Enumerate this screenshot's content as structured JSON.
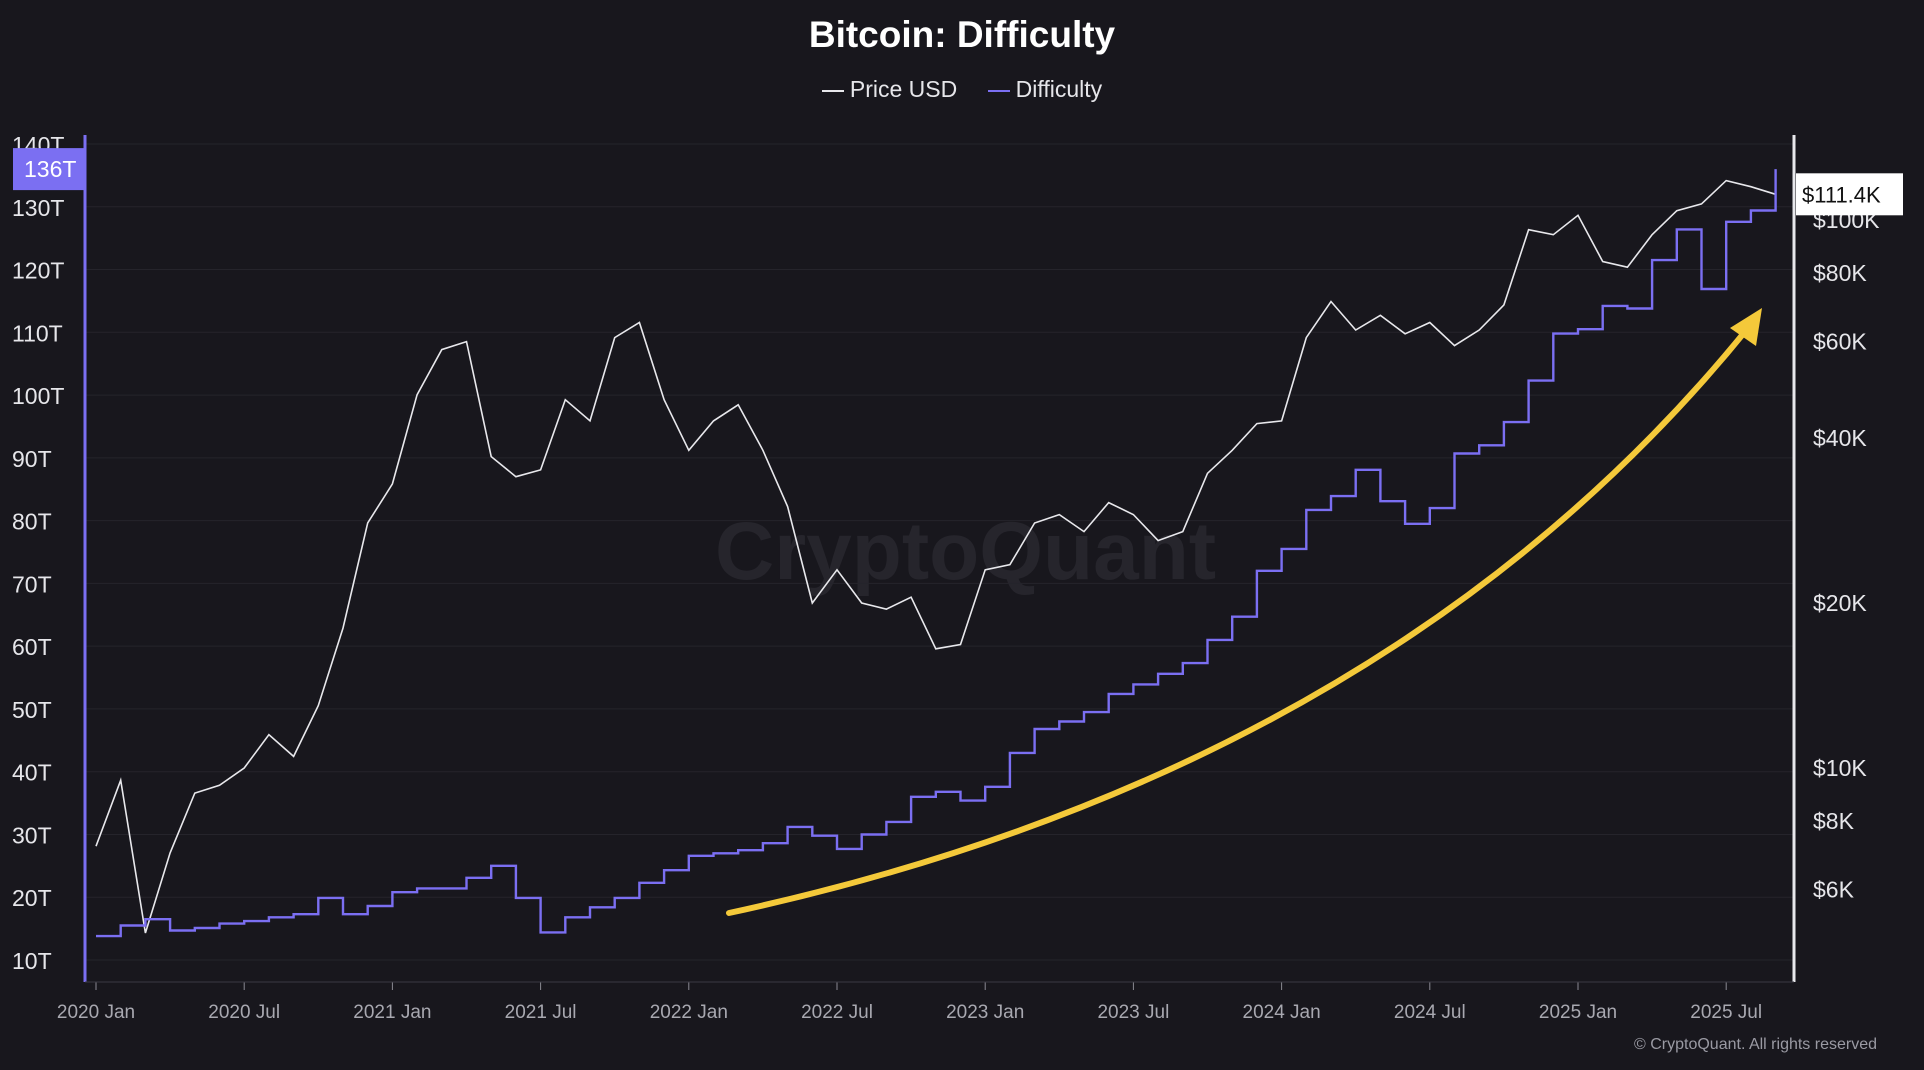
{
  "chart_data": {
    "type": "line",
    "title": "Bitcoin: Difficulty",
    "legend": [
      "Price USD",
      "Difficulty"
    ],
    "legend_placement": "top-center",
    "colors": {
      "price": "#e8e8ec",
      "difficulty": "#7b6ff2",
      "arrow": "#f4c93a",
      "background": "#18171d"
    },
    "x_ticks": [
      "2020 Jan",
      "2020 Jul",
      "2021 Jan",
      "2021 Jul",
      "2022 Jan",
      "2022 Jul",
      "2023 Jan",
      "2023 Jul",
      "2024 Jan",
      "2024 Jul",
      "2025 Jan",
      "2025 Jul"
    ],
    "left_axis": {
      "ticks": [
        "10T",
        "20T",
        "30T",
        "40T",
        "50T",
        "60T",
        "70T",
        "80T",
        "90T",
        "100T",
        "110T",
        "120T",
        "130T",
        "140T"
      ],
      "range": [
        10,
        140
      ],
      "current_label": "136T"
    },
    "right_axis": {
      "scale": "log",
      "ticks": [
        "$6K",
        "$8K",
        "$10K",
        "$20K",
        "$40K",
        "$60K",
        "$80K",
        "$100K"
      ],
      "tick_values": [
        6000,
        8000,
        10000,
        20000,
        40000,
        60000,
        80000,
        100000
      ],
      "current_label": "$111.4K"
    },
    "dates": [
      "2020-01",
      "2020-02",
      "2020-03",
      "2020-04",
      "2020-05",
      "2020-06",
      "2020-07",
      "2020-08",
      "2020-09",
      "2020-10",
      "2020-11",
      "2020-12",
      "2021-01",
      "2021-02",
      "2021-03",
      "2021-04",
      "2021-05",
      "2021-06",
      "2021-07",
      "2021-08",
      "2021-09",
      "2021-10",
      "2021-11",
      "2021-12",
      "2022-01",
      "2022-02",
      "2022-03",
      "2022-04",
      "2022-05",
      "2022-06",
      "2022-07",
      "2022-08",
      "2022-09",
      "2022-10",
      "2022-11",
      "2022-12",
      "2023-01",
      "2023-02",
      "2023-03",
      "2023-04",
      "2023-05",
      "2023-06",
      "2023-07",
      "2023-08",
      "2023-09",
      "2023-10",
      "2023-11",
      "2023-12",
      "2024-01",
      "2024-02",
      "2024-03",
      "2024-04",
      "2024-05",
      "2024-06",
      "2024-07",
      "2024-08",
      "2024-09",
      "2024-10",
      "2024-11",
      "2024-12",
      "2025-01",
      "2025-02",
      "2025-03",
      "2025-04",
      "2025-05",
      "2025-06",
      "2025-07",
      "2025-08",
      "2025-09"
    ],
    "series": [
      {
        "name": "Price USD",
        "axis": "right",
        "values": [
          7200,
          9500,
          5000,
          7000,
          9000,
          9300,
          10000,
          11500,
          10500,
          13000,
          18000,
          28000,
          33000,
          48000,
          58000,
          60000,
          37000,
          34000,
          35000,
          47000,
          43000,
          61000,
          65000,
          47000,
          38000,
          43000,
          46000,
          38000,
          30000,
          20000,
          23000,
          20000,
          19500,
          20500,
          16500,
          16800,
          23000,
          23500,
          28000,
          29000,
          27000,
          30500,
          29000,
          26000,
          27000,
          34500,
          38000,
          42500,
          43000,
          61000,
          71000,
          63000,
          67000,
          62000,
          65000,
          59000,
          63000,
          70000,
          96000,
          94000,
          102000,
          84000,
          82000,
          94000,
          104000,
          107000,
          118000,
          115000,
          111400
        ]
      },
      {
        "name": "Difficulty",
        "axis": "left",
        "values": [
          13.8,
          15.5,
          16.5,
          14.7,
          15.1,
          15.8,
          16.2,
          16.8,
          17.3,
          19.9,
          17.3,
          18.6,
          20.8,
          21.4,
          21.4,
          23.1,
          25.0,
          19.9,
          14.4,
          16.8,
          18.4,
          19.9,
          22.3,
          24.3,
          26.6,
          27.0,
          27.5,
          28.6,
          31.2,
          29.8,
          27.7,
          30.0,
          32.0,
          36.0,
          36.8,
          35.4,
          37.6,
          43.0,
          46.8,
          48.0,
          49.5,
          52.4,
          53.9,
          55.6,
          57.3,
          61.0,
          64.7,
          72.0,
          75.5,
          81.7,
          83.9,
          88.1,
          83.1,
          79.5,
          82.0,
          90.7,
          92.0,
          95.7,
          102.3,
          109.8,
          110.5,
          114.2,
          113.8,
          121.5,
          126.4,
          116.9,
          127.6,
          129.4,
          136.0
        ]
      }
    ]
  },
  "watermark": "CryptoQuant",
  "copyright": "© CryptoQuant. All rights reserved"
}
